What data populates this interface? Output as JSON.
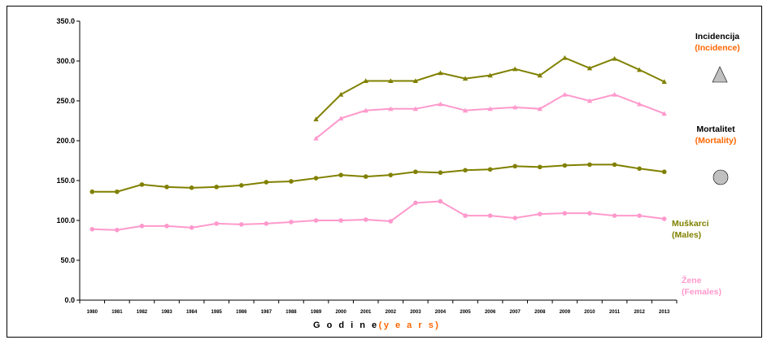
{
  "chart_data": {
    "type": "line",
    "categories": [
      "1980",
      "1981",
      "1982",
      "1983",
      "1984",
      "1985",
      "1986",
      "1987",
      "1988",
      "1989",
      "2000",
      "2001",
      "2002",
      "2003",
      "2004",
      "2005",
      "2006",
      "2007",
      "2008",
      "2009",
      "2010",
      "2011",
      "2012",
      "2013"
    ],
    "ylim": [
      0,
      350
    ],
    "yticks": [
      "0.0",
      "50.0",
      "100.0",
      "150.0",
      "200.0",
      "250.0",
      "300.0",
      "350.0"
    ],
    "xlabel": "G o d i n e",
    "xlabel_paren": "(y e a r s)",
    "series": [
      {
        "name": "Incidencija muškarci",
        "color": "#808000",
        "marker": "triangle",
        "values": [
          null,
          null,
          null,
          null,
          null,
          null,
          null,
          null,
          null,
          227,
          258,
          275,
          275,
          275,
          285,
          278,
          282,
          290,
          282,
          304,
          291,
          303,
          289,
          274
        ]
      },
      {
        "name": "Incidencija žene",
        "color": "#ff99cc",
        "marker": "triangle",
        "values": [
          null,
          null,
          null,
          null,
          null,
          null,
          null,
          null,
          null,
          203,
          228,
          238,
          240,
          240,
          246,
          238,
          240,
          242,
          240,
          258,
          250,
          258,
          246,
          234
        ]
      },
      {
        "name": "Mortalitet muškarci",
        "color": "#808000",
        "marker": "circle",
        "values": [
          136,
          136,
          145,
          142,
          141,
          142,
          144,
          148,
          149,
          153,
          157,
          155,
          157,
          161,
          160,
          163,
          164,
          168,
          167,
          169,
          170,
          170,
          165,
          161
        ]
      },
      {
        "name": "Mortalitet žene",
        "color": "#ff99cc",
        "marker": "circle",
        "values": [
          89,
          88,
          93,
          93,
          91,
          96,
          95,
          96,
          98,
          100,
          100,
          101,
          99,
          122,
          124,
          106,
          106,
          103,
          108,
          109,
          109,
          106,
          106,
          102
        ]
      }
    ],
    "legend": {
      "incidence": {
        "label": "Incidencija",
        "label_en": "(Incidence)"
      },
      "mortality": {
        "label": "Mortalitet",
        "label_en": "(Mortality)"
      },
      "males": {
        "label": "Muškarci",
        "label_en": "(Males)"
      },
      "females": {
        "label": "Žene",
        "label_en": "(Females)"
      }
    }
  }
}
